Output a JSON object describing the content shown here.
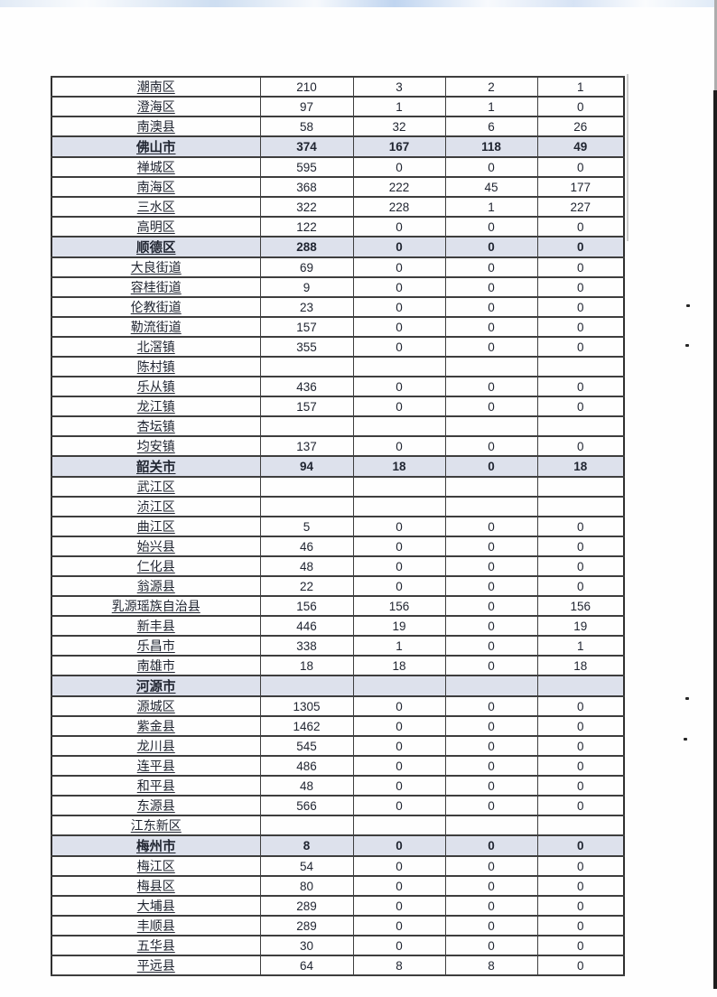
{
  "colors": {
    "city_row_shade": "#dde1ec",
    "border": "#3e3e3e",
    "text": "#1f2430",
    "right_strip": "#1d1d1d"
  },
  "table": {
    "rows": [
      {
        "name": "潮南区",
        "type": "normal",
        "values": [
          "210",
          "3",
          "2",
          "1"
        ]
      },
      {
        "name": "澄海区",
        "type": "normal",
        "values": [
          "97",
          "1",
          "1",
          "0"
        ]
      },
      {
        "name": "南澳县",
        "type": "normal",
        "values": [
          "58",
          "32",
          "6",
          "26"
        ]
      },
      {
        "name": "佛山市",
        "type": "city",
        "values": [
          "374",
          "167",
          "118",
          "49"
        ]
      },
      {
        "name": "禅城区",
        "type": "normal",
        "values": [
          "595",
          "0",
          "0",
          "0"
        ]
      },
      {
        "name": "南海区",
        "type": "normal",
        "values": [
          "368",
          "222",
          "45",
          "177"
        ]
      },
      {
        "name": "三水区",
        "type": "normal",
        "values": [
          "322",
          "228",
          "1",
          "227"
        ]
      },
      {
        "name": "高明区",
        "type": "normal",
        "values": [
          "122",
          "0",
          "0",
          "0"
        ]
      },
      {
        "name": "顺德区",
        "type": "city",
        "values": [
          "288",
          "0",
          "0",
          "0"
        ]
      },
      {
        "name": "大良街道",
        "type": "normal",
        "values": [
          "69",
          "0",
          "0",
          "0"
        ]
      },
      {
        "name": "容桂街道",
        "type": "normal",
        "values": [
          "9",
          "0",
          "0",
          "0"
        ]
      },
      {
        "name": "伦教街道",
        "type": "normal",
        "values": [
          "23",
          "0",
          "0",
          "0"
        ]
      },
      {
        "name": "勒流街道",
        "type": "normal",
        "values": [
          "157",
          "0",
          "0",
          "0"
        ]
      },
      {
        "name": "北滘镇",
        "type": "normal",
        "values": [
          "355",
          "0",
          "0",
          "0"
        ]
      },
      {
        "name": "陈村镇",
        "type": "normal",
        "values": [
          "",
          "",
          "",
          ""
        ]
      },
      {
        "name": "乐从镇",
        "type": "normal",
        "values": [
          "436",
          "0",
          "0",
          "0"
        ]
      },
      {
        "name": "龙江镇",
        "type": "normal",
        "values": [
          "157",
          "0",
          "0",
          "0"
        ]
      },
      {
        "name": "杏坛镇",
        "type": "normal",
        "values": [
          "",
          "",
          "",
          ""
        ]
      },
      {
        "name": "均安镇",
        "type": "normal",
        "values": [
          "137",
          "0",
          "0",
          "0"
        ]
      },
      {
        "name": "韶关市",
        "type": "city",
        "values": [
          "94",
          "18",
          "0",
          "18"
        ]
      },
      {
        "name": "武江区",
        "type": "normal",
        "values": [
          "",
          "",
          "",
          ""
        ]
      },
      {
        "name": "浈江区",
        "type": "normal",
        "values": [
          "",
          "",
          "",
          ""
        ]
      },
      {
        "name": "曲江区",
        "type": "normal",
        "values": [
          "5",
          "0",
          "0",
          "0"
        ]
      },
      {
        "name": "始兴县",
        "type": "normal",
        "values": [
          "46",
          "0",
          "0",
          "0"
        ]
      },
      {
        "name": "仁化县",
        "type": "normal",
        "values": [
          "48",
          "0",
          "0",
          "0"
        ]
      },
      {
        "name": "翁源县",
        "type": "normal",
        "values": [
          "22",
          "0",
          "0",
          "0"
        ]
      },
      {
        "name": "乳源瑶族自治县",
        "type": "normal",
        "values": [
          "156",
          "156",
          "0",
          "156"
        ]
      },
      {
        "name": "新丰县",
        "type": "normal",
        "values": [
          "446",
          "19",
          "0",
          "19"
        ]
      },
      {
        "name": "乐昌市",
        "type": "normal",
        "values": [
          "338",
          "1",
          "0",
          "1"
        ]
      },
      {
        "name": "南雄市",
        "type": "normal",
        "values": [
          "18",
          "18",
          "0",
          "18"
        ]
      },
      {
        "name": "河源市",
        "type": "city",
        "values": [
          "",
          "",
          "",
          ""
        ]
      },
      {
        "name": "源城区",
        "type": "normal",
        "values": [
          "1305",
          "0",
          "0",
          "0"
        ]
      },
      {
        "name": "紫金县",
        "type": "normal",
        "values": [
          "1462",
          "0",
          "0",
          "0"
        ]
      },
      {
        "name": "龙川县",
        "type": "normal",
        "values": [
          "545",
          "0",
          "0",
          "0"
        ]
      },
      {
        "name": "连平县",
        "type": "normal",
        "values": [
          "486",
          "0",
          "0",
          "0"
        ]
      },
      {
        "name": "和平县",
        "type": "normal",
        "values": [
          "48",
          "0",
          "0",
          "0"
        ]
      },
      {
        "name": "东源县",
        "type": "normal",
        "values": [
          "566",
          "0",
          "0",
          "0"
        ]
      },
      {
        "name": "江东新区",
        "type": "normal",
        "values": [
          "",
          "",
          "",
          ""
        ]
      },
      {
        "name": "梅州市",
        "type": "city",
        "values": [
          "8",
          "0",
          "0",
          "0"
        ]
      },
      {
        "name": "梅江区",
        "type": "normal",
        "values": [
          "54",
          "0",
          "0",
          "0"
        ]
      },
      {
        "name": "梅县区",
        "type": "normal",
        "values": [
          "80",
          "0",
          "0",
          "0"
        ]
      },
      {
        "name": "大埔县",
        "type": "normal",
        "values": [
          "289",
          "0",
          "0",
          "0"
        ]
      },
      {
        "name": "丰顺县",
        "type": "normal",
        "values": [
          "289",
          "0",
          "0",
          "0"
        ]
      },
      {
        "name": "五华县",
        "type": "normal",
        "values": [
          "30",
          "0",
          "0",
          "0"
        ]
      },
      {
        "name": "平远县",
        "type": "normal",
        "values": [
          "64",
          "8",
          "8",
          "0"
        ]
      }
    ]
  }
}
